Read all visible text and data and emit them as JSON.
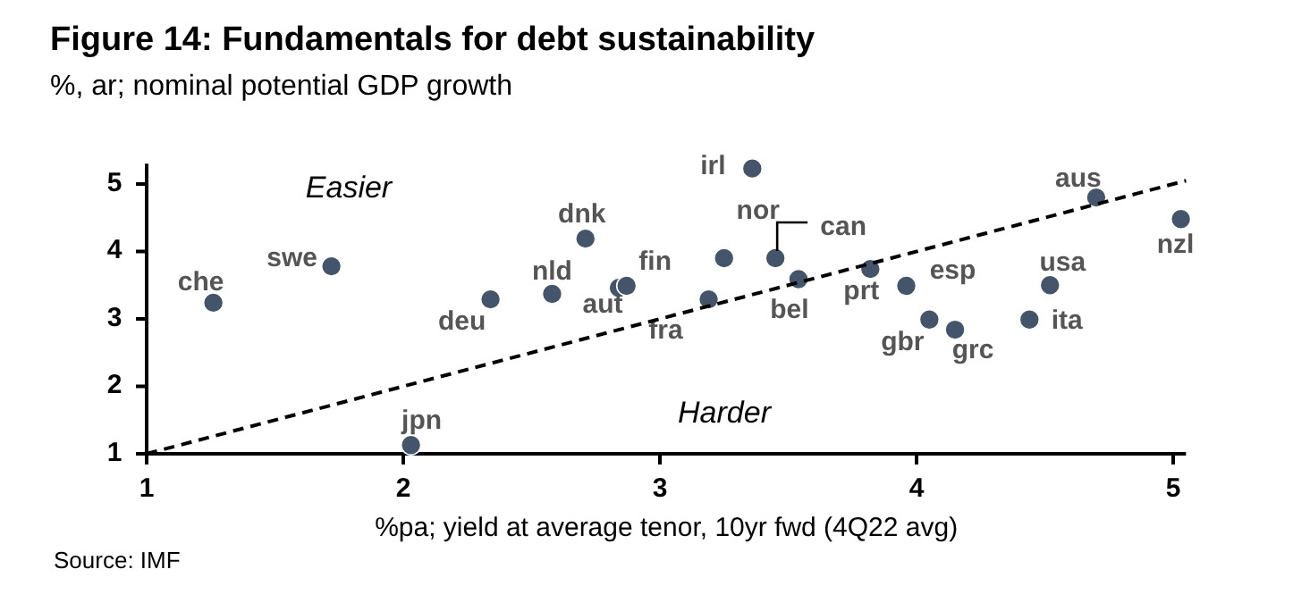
{
  "chart_data": {
    "type": "scatter",
    "title": "Figure 14: Fundamentals for debt sustainability",
    "subtitle": "%, ar; nominal potential GDP growth",
    "xlabel": "%pa; yield at average tenor, 10yr fwd (4Q22 avg)",
    "annotations": [
      "Easier",
      "Harder",
      "Source: IMF"
    ],
    "xlim": [
      1,
      5.05
    ],
    "xticks": [
      1,
      2,
      3,
      4,
      5
    ],
    "ylim": [
      1,
      5.3
    ],
    "yticks": [
      1,
      2,
      3,
      4,
      5
    ],
    "grid": false,
    "marker": "circle",
    "series": [
      {
        "name": "che",
        "color": "#44546a",
        "x": [
          1.26
        ],
        "values": [
          3.24
        ]
      },
      {
        "name": "swe",
        "color": "#44546a",
        "x": [
          1.72
        ],
        "values": [
          3.78
        ]
      },
      {
        "name": "deu",
        "color": "#44546a",
        "x": [
          2.34
        ],
        "values": [
          3.29
        ]
      },
      {
        "name": "nld",
        "color": "#44546a",
        "x": [
          2.58
        ],
        "values": [
          3.37
        ]
      },
      {
        "name": "dnk",
        "color": "#44546a",
        "x": [
          2.71
        ],
        "values": [
          4.19
        ]
      },
      {
        "name": "aut",
        "color": "#44546a",
        "x": [
          2.84
        ],
        "values": [
          3.46
        ]
      },
      {
        "name": "fin",
        "color": "#44546a",
        "x": [
          2.87
        ],
        "values": [
          3.49
        ]
      },
      {
        "name": "fra",
        "color": "#44546a",
        "x": [
          3.19
        ],
        "values": [
          3.29
        ]
      },
      {
        "name": "jpn",
        "color": "#44546a",
        "x": [
          2.03
        ],
        "values": [
          1.13
        ]
      },
      {
        "name": "nor",
        "color": "#44546a",
        "x": [
          3.25
        ],
        "values": [
          3.9
        ]
      },
      {
        "name": "can",
        "color": "#44546a",
        "x": [
          3.45
        ],
        "values": [
          3.9
        ]
      },
      {
        "name": "irl",
        "color": "#44546a",
        "x": [
          3.36
        ],
        "values": [
          5.23
        ]
      },
      {
        "name": "bel",
        "color": "#44546a",
        "x": [
          3.54
        ],
        "values": [
          3.59
        ]
      },
      {
        "name": "prt",
        "color": "#44546a",
        "x": [
          3.82
        ],
        "values": [
          3.74
        ]
      },
      {
        "name": "esp",
        "color": "#44546a",
        "x": [
          3.96
        ],
        "values": [
          3.49
        ]
      },
      {
        "name": "gbr",
        "color": "#44546a",
        "x": [
          4.05
        ],
        "values": [
          2.99
        ]
      },
      {
        "name": "grc",
        "color": "#44546a",
        "x": [
          4.15
        ],
        "values": [
          2.84
        ]
      },
      {
        "name": "ita",
        "color": "#44546a",
        "x": [
          4.44
        ],
        "values": [
          2.99
        ]
      },
      {
        "name": "usa",
        "color": "#44546a",
        "x": [
          4.52
        ],
        "values": [
          3.5
        ]
      },
      {
        "name": "aus",
        "color": "#44546a",
        "x": [
          4.7
        ],
        "values": [
          4.8
        ]
      },
      {
        "name": "nzl",
        "color": "#44546a",
        "x": [
          5.03
        ],
        "values": [
          4.48
        ]
      },
      {
        "type": "line",
        "color": "#000000",
        "line_style": "dashed",
        "marker": "none",
        "x": [
          1,
          5.05
        ],
        "values": [
          1,
          5.05
        ]
      }
    ]
  }
}
